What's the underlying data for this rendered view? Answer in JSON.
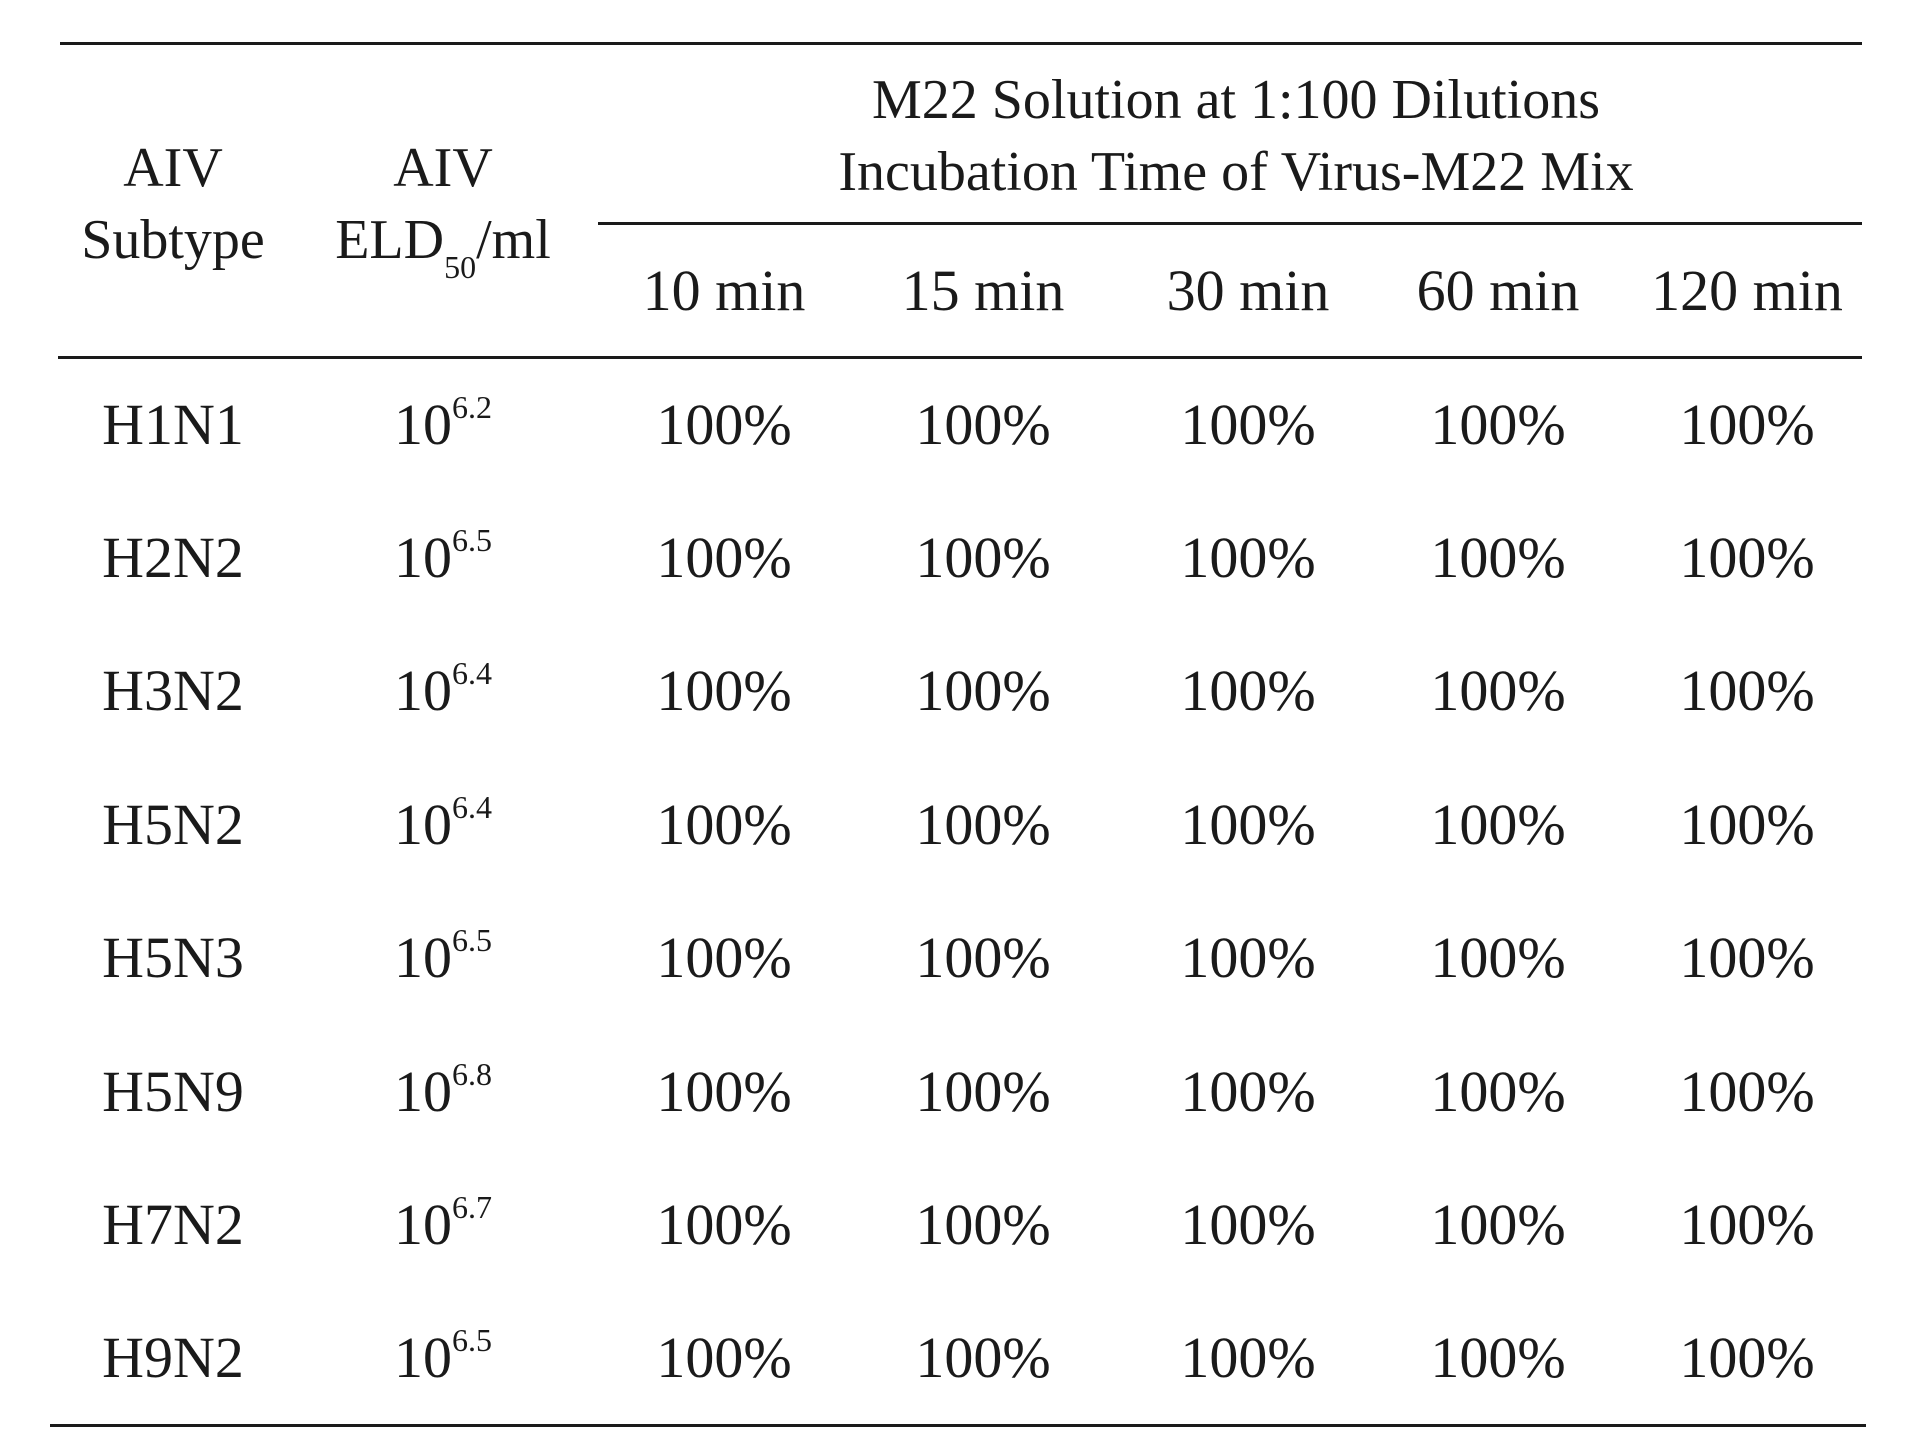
{
  "table": {
    "headers": {
      "subtype_line1": "AIV",
      "subtype_line2": "Subtype",
      "eld_line1": "AIV",
      "eld_line2_prefix": "ELD",
      "eld_line2_sub": "50",
      "eld_line2_suffix": "/ml",
      "group_line1": "M22 Solution at 1:100 Dilutions",
      "group_line2": "Incubation Time of Virus-M22 Mix",
      "time_columns": [
        "10 min",
        "15 min",
        "30 min",
        "60 min",
        "120 min"
      ]
    },
    "rows": [
      {
        "subtype": "H1N1",
        "eld_base": "10",
        "eld_exp": "6.2",
        "values": [
          "100%",
          "100%",
          "100%",
          "100%",
          "100%"
        ]
      },
      {
        "subtype": "H2N2",
        "eld_base": "10",
        "eld_exp": "6.5",
        "values": [
          "100%",
          "100%",
          "100%",
          "100%",
          "100%"
        ]
      },
      {
        "subtype": "H3N2",
        "eld_base": "10",
        "eld_exp": "6.4",
        "values": [
          "100%",
          "100%",
          "100%",
          "100%",
          "100%"
        ]
      },
      {
        "subtype": "H5N2",
        "eld_base": "10",
        "eld_exp": "6.4",
        "values": [
          "100%",
          "100%",
          "100%",
          "100%",
          "100%"
        ]
      },
      {
        "subtype": "H5N3",
        "eld_base": "10",
        "eld_exp": "6.5",
        "values": [
          "100%",
          "100%",
          "100%",
          "100%",
          "100%"
        ]
      },
      {
        "subtype": "H5N9",
        "eld_base": "10",
        "eld_exp": "6.8",
        "values": [
          "100%",
          "100%",
          "100%",
          "100%",
          "100%"
        ]
      },
      {
        "subtype": "H7N2",
        "eld_base": "10",
        "eld_exp": "6.7",
        "values": [
          "100%",
          "100%",
          "100%",
          "100%",
          "100%"
        ]
      },
      {
        "subtype": "H9N2",
        "eld_base": "10",
        "eld_exp": "6.5",
        "values": [
          "100%",
          "100%",
          "100%",
          "100%",
          "100%"
        ]
      }
    ]
  }
}
